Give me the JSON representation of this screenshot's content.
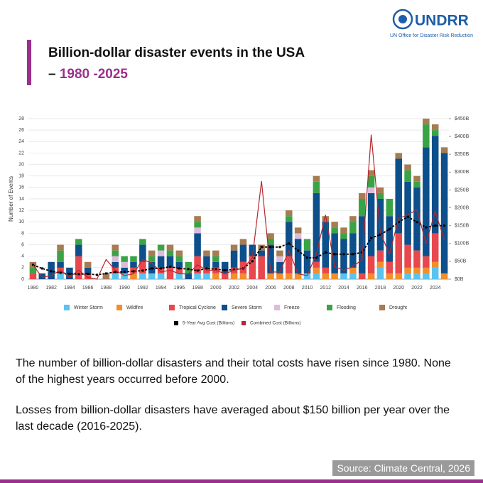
{
  "header": {
    "logo_text": "UNDRR",
    "logo_subtitle": "UN Office for Disaster Risk Reduction",
    "title_line1": "Billion-dollar disaster events in the USA",
    "title_dash": "–",
    "title_years": "1980 -2025"
  },
  "chart_data": {
    "type": "bar",
    "stacked": true,
    "y_label": "Number of Events",
    "categories": [
      "1980",
      "1981",
      "1982",
      "1983",
      "1984",
      "1985",
      "1986",
      "1987",
      "1988",
      "1989",
      "1990",
      "1991",
      "1992",
      "1993",
      "1994",
      "1995",
      "1996",
      "1997",
      "1998",
      "1999",
      "2000",
      "2001",
      "2002",
      "2003",
      "2004",
      "2005",
      "2006",
      "2007",
      "2008",
      "2009",
      "2010",
      "2011",
      "2012",
      "2013",
      "2014",
      "2015",
      "2016",
      "2017",
      "2018",
      "2019",
      "2020",
      "2021",
      "2022",
      "2023",
      "2024",
      "2025"
    ],
    "ylim": [
      0,
      28
    ],
    "yticks": [
      0,
      2,
      4,
      6,
      8,
      10,
      12,
      14,
      16,
      18,
      20,
      22,
      24,
      26,
      28
    ],
    "grid": true,
    "y2lim": [
      0,
      450
    ],
    "y2ticks": [
      {
        "value": 0,
        "label": "$0B"
      },
      {
        "value": 50,
        "label": "$50B"
      },
      {
        "value": 100,
        "label": "$100B"
      },
      {
        "value": 150,
        "label": "$150B"
      },
      {
        "value": 200,
        "label": "$200B"
      },
      {
        "value": 250,
        "label": "$250B"
      },
      {
        "value": 300,
        "label": "$300B"
      },
      {
        "value": 350,
        "label": "$350B"
      },
      {
        "value": 400,
        "label": "$400B"
      },
      {
        "value": 450,
        "label": "$450B"
      }
    ],
    "series": [
      {
        "name": "Winter Storm",
        "color": "#5cc3ee",
        "values": [
          0,
          0,
          0,
          1,
          0,
          0,
          0,
          0,
          0,
          1,
          1,
          0,
          1,
          1,
          1,
          0,
          1,
          0,
          1,
          1,
          0,
          0,
          0,
          0,
          0,
          0,
          0,
          0,
          0,
          0,
          1,
          1,
          0,
          0,
          1,
          1,
          0,
          0,
          2,
          0,
          0,
          1,
          1,
          1,
          2,
          0
        ]
      },
      {
        "name": "Wildfire",
        "color": "#f28e2b",
        "values": [
          0,
          0,
          0,
          0,
          0,
          0,
          0,
          0,
          0,
          0,
          0,
          1,
          0,
          0,
          0,
          0,
          0,
          0,
          0,
          0,
          1,
          0,
          1,
          1,
          0,
          0,
          1,
          1,
          1,
          1,
          0,
          1,
          1,
          1,
          0,
          1,
          0,
          1,
          1,
          1,
          1,
          1,
          1,
          1,
          1,
          1
        ]
      },
      {
        "name": "Tropical Cyclone",
        "color": "#e8474d",
        "values": [
          1,
          0,
          0,
          1,
          0,
          4,
          1,
          0,
          0,
          1,
          0,
          1,
          2,
          0,
          1,
          2,
          1,
          0,
          3,
          1,
          1,
          1,
          1,
          2,
          4,
          4,
          0,
          0,
          3,
          0,
          0,
          1,
          1,
          0,
          0,
          0,
          1,
          3,
          2,
          2,
          7,
          4,
          3,
          2,
          5,
          0
        ]
      },
      {
        "name": "Severe Storm",
        "color": "#0d4f8b",
        "values": [
          0,
          1,
          3,
          1,
          2,
          2,
          1,
          0,
          0,
          1,
          1,
          1,
          3,
          2,
          2,
          2,
          1,
          1,
          4,
          2,
          1,
          2,
          3,
          3,
          2,
          1,
          5,
          2,
          6,
          6,
          4,
          12,
          8,
          7,
          6,
          6,
          10,
          11,
          9,
          8,
          13,
          11,
          11,
          19,
          17,
          21
        ]
      },
      {
        "name": "Freeze",
        "color": "#dcbcdc",
        "values": [
          0,
          0,
          0,
          0,
          0,
          0,
          0,
          0,
          0,
          1,
          1,
          0,
          0,
          0,
          1,
          0,
          0,
          0,
          1,
          0,
          0,
          0,
          0,
          0,
          0,
          0,
          0,
          1,
          0,
          1,
          0,
          0,
          0,
          0,
          0,
          0,
          0,
          1,
          0,
          0,
          0,
          0,
          0,
          0,
          0,
          0
        ]
      },
      {
        "name": "Flooding",
        "color": "#3aa346",
        "values": [
          1,
          0,
          0,
          2,
          0,
          1,
          0,
          0,
          0,
          1,
          1,
          1,
          1,
          1,
          1,
          1,
          1,
          2,
          1,
          0,
          1,
          0,
          0,
          0,
          0,
          0,
          1,
          0,
          1,
          0,
          2,
          2,
          0,
          1,
          1,
          2,
          3,
          2,
          1,
          3,
          0,
          2,
          1,
          4,
          1,
          0
        ]
      },
      {
        "name": "Drought",
        "color": "#a67c52",
        "values": [
          1,
          0,
          0,
          1,
          0,
          0,
          1,
          0,
          1,
          1,
          0,
          0,
          0,
          1,
          0,
          1,
          1,
          0,
          1,
          1,
          1,
          0,
          1,
          1,
          0,
          1,
          1,
          1,
          1,
          1,
          0,
          1,
          1,
          1,
          1,
          1,
          1,
          1,
          1,
          0,
          1,
          1,
          1,
          1,
          1,
          1
        ]
      },
      {
        "name": "5-Year Avg Cost (Billions)",
        "color": "#000000",
        "axis": "y2",
        "dashed": true,
        "values": [
          40,
          30,
          22,
          18,
          15,
          14,
          15,
          12,
          16,
          20,
          20,
          22,
          24,
          30,
          30,
          35,
          30,
          28,
          24,
          30,
          28,
          25,
          27,
          30,
          50,
          90,
          90,
          90,
          100,
          80,
          60,
          60,
          75,
          70,
          70,
          70,
          75,
          115,
          125,
          140,
          160,
          175,
          160,
          145,
          150,
          150
        ]
      },
      {
        "name": "Combined Cost (Billions)",
        "color": "#b5282e",
        "axis": "y2",
        "values": [
          40,
          5,
          10,
          25,
          5,
          25,
          5,
          0,
          55,
          25,
          10,
          15,
          55,
          45,
          20,
          25,
          15,
          15,
          40,
          25,
          25,
          15,
          25,
          30,
          60,
          275,
          20,
          20,
          80,
          15,
          10,
          70,
          180,
          35,
          25,
          35,
          55,
          405,
          130,
          70,
          170,
          180,
          195,
          100,
          190,
          110
        ]
      }
    ]
  },
  "paragraphs": [
    "The number of billion-dollar disasters and their total costs have risen since 1980. None of the highest years occurred before 2000.",
    "Losses from billion-dollar disasters have averaged about $150 billion per year over the last decade (2016-2025)."
  ],
  "source": "Source: Climate Central, 2026"
}
